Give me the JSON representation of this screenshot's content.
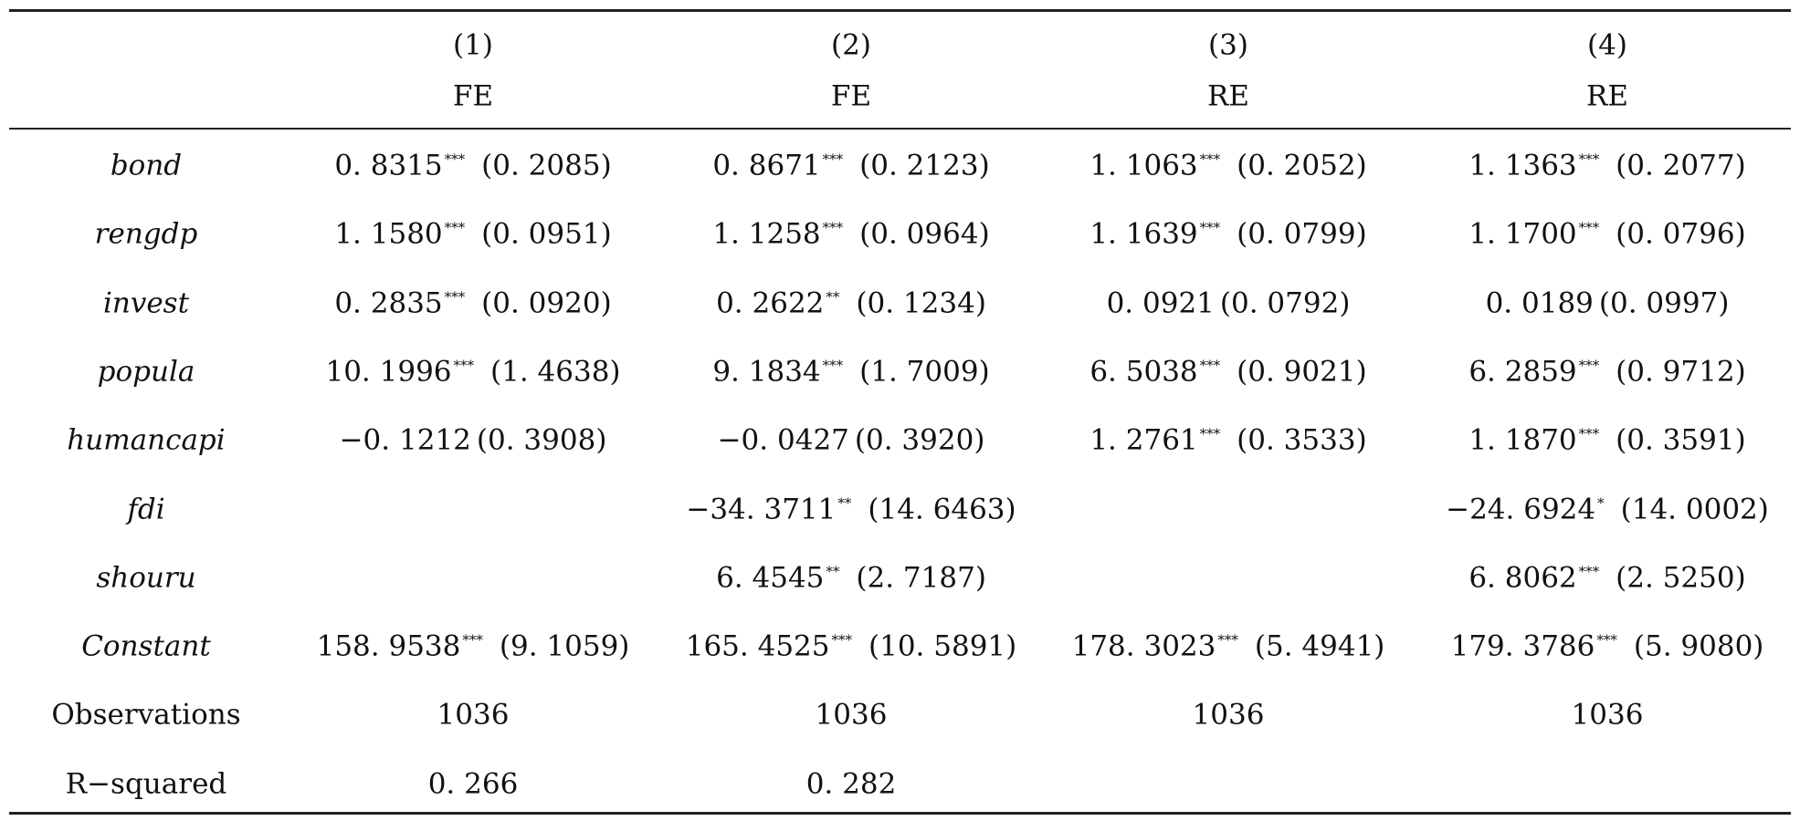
{
  "header": {
    "numbers": [
      "(1)",
      "(2)",
      "(3)",
      "(4)"
    ],
    "methods": [
      "FE",
      "FE",
      "RE",
      "RE"
    ]
  },
  "rows": [
    {
      "label": "bond",
      "italic": true,
      "cells": [
        {
          "coef": "0. 8315",
          "stars": "***",
          "se": "(0. 2085)"
        },
        {
          "coef": "0. 8671",
          "stars": "***",
          "se": "(0. 2123)"
        },
        {
          "coef": "1. 1063",
          "stars": "***",
          "se": "(0. 2052)"
        },
        {
          "coef": "1. 1363",
          "stars": "***",
          "se": "(0. 2077)"
        }
      ]
    },
    {
      "label": "rengdp",
      "italic": true,
      "cells": [
        {
          "coef": "1. 1580",
          "stars": "***",
          "se": "(0. 0951)"
        },
        {
          "coef": "1. 1258",
          "stars": "***",
          "se": "(0. 0964)"
        },
        {
          "coef": "1. 1639",
          "stars": "***",
          "se": "(0. 0799)"
        },
        {
          "coef": "1. 1700",
          "stars": "***",
          "se": "(0. 0796)"
        }
      ]
    },
    {
      "label": "invest",
      "italic": true,
      "cells": [
        {
          "coef": "0. 2835",
          "stars": "***",
          "se": "(0. 0920)"
        },
        {
          "coef": "0. 2622",
          "stars": "**",
          "se": "(0. 1234)"
        },
        {
          "coef": "0. 0921",
          "stars": "",
          "se": "(0. 0792)"
        },
        {
          "coef": "0. 0189",
          "stars": "",
          "se": "(0. 0997)"
        }
      ]
    },
    {
      "label": "popula",
      "italic": true,
      "cells": [
        {
          "coef": "10. 1996",
          "stars": "***",
          "se": "(1. 4638)"
        },
        {
          "coef": "9. 1834",
          "stars": "***",
          "se": "(1. 7009)"
        },
        {
          "coef": "6. 5038",
          "stars": "***",
          "se": "(0. 9021)"
        },
        {
          "coef": "6. 2859",
          "stars": "***",
          "se": "(0. 9712)"
        }
      ]
    },
    {
      "label": "humancapi",
      "italic": true,
      "cells": [
        {
          "coef": "−0. 1212",
          "stars": "",
          "se": "(0. 3908)"
        },
        {
          "coef": "−0. 0427",
          "stars": "",
          "se": "(0. 3920)"
        },
        {
          "coef": "1. 2761",
          "stars": "***",
          "se": "(0. 3533)"
        },
        {
          "coef": "1. 1870",
          "stars": "***",
          "se": "(0. 3591)"
        }
      ]
    },
    {
      "label": "fdi",
      "italic": true,
      "cells": [
        null,
        {
          "coef": "−34. 3711",
          "stars": "**",
          "se": "(14. 6463)"
        },
        null,
        {
          "coef": "−24. 6924",
          "stars": "*",
          "se": "(14. 0002)"
        }
      ]
    },
    {
      "label": "shouru",
      "italic": true,
      "cells": [
        null,
        {
          "coef": "6. 4545",
          "stars": "**",
          "se": "(2. 7187)"
        },
        null,
        {
          "coef": "6. 8062",
          "stars": "***",
          "se": "(2. 5250)"
        }
      ]
    },
    {
      "label": "Constant",
      "italic": true,
      "cells": [
        {
          "coef": "158. 9538",
          "stars": "***",
          "se": "(9. 1059)"
        },
        {
          "coef": "165. 4525",
          "stars": "***",
          "se": "(10. 5891)"
        },
        {
          "coef": "178. 3023",
          "stars": "***",
          "se": "(5. 4941)"
        },
        {
          "coef": "179. 3786",
          "stars": "***",
          "se": "(5. 9080)"
        }
      ]
    },
    {
      "label": "Observations",
      "italic": false,
      "cells": [
        {
          "coef": "1036",
          "stars": "",
          "se": ""
        },
        {
          "coef": "1036",
          "stars": "",
          "se": ""
        },
        {
          "coef": "1036",
          "stars": "",
          "se": ""
        },
        {
          "coef": "1036",
          "stars": "",
          "se": ""
        }
      ]
    },
    {
      "label": "R−squared",
      "italic": false,
      "cells": [
        {
          "coef": "0. 266",
          "stars": "",
          "se": ""
        },
        {
          "coef": "0. 282",
          "stars": "",
          "se": ""
        },
        null,
        null
      ]
    }
  ]
}
